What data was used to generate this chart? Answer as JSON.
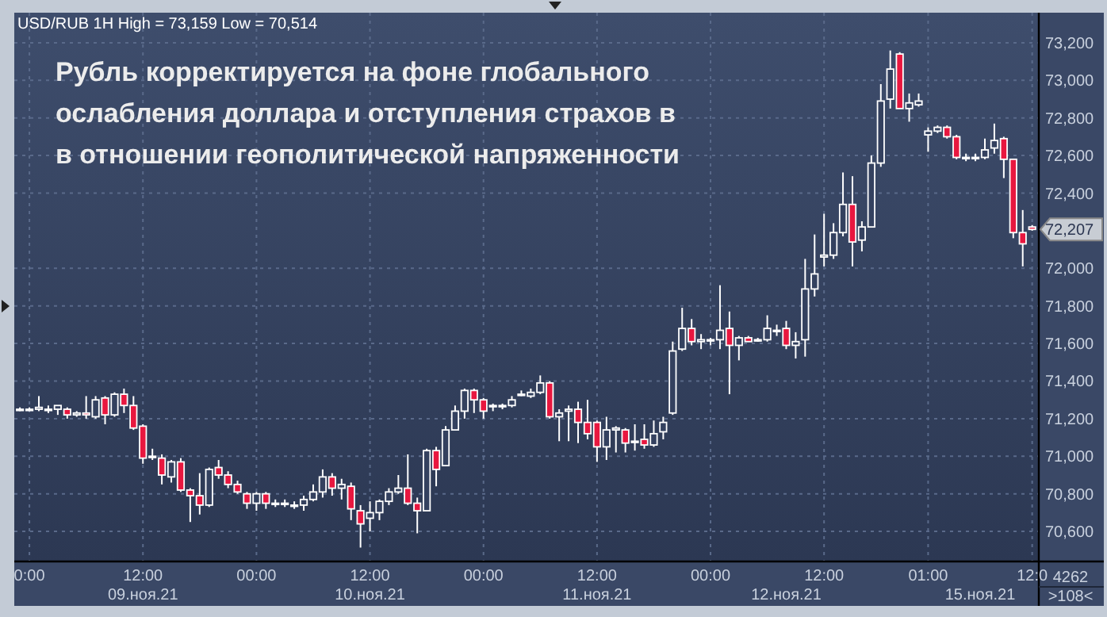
{
  "chart_data": {
    "type": "candlestick",
    "title": "Рубль корректируется на фоне глобального\nослабления доллара и отступления страхов в\nв отношении геополитической напряженности",
    "subtitle": "USD/RUB 1H High = 73,159 Low = 70,514",
    "categories": [
      null,
      "0:00",
      null,
      null,
      null,
      null,
      null,
      null,
      null,
      null,
      null,
      null,
      null,
      "12:00",
      null,
      null,
      null,
      null,
      null,
      null,
      null,
      null,
      null,
      null,
      null,
      "00:00",
      null,
      null,
      null,
      null,
      null,
      null,
      null,
      null,
      null,
      null,
      null,
      "12:00",
      null,
      null,
      null,
      null,
      null,
      null,
      null,
      null,
      null,
      null,
      null,
      "00:00",
      null,
      null,
      null,
      null,
      null,
      null,
      null,
      null,
      null,
      null,
      null,
      "12:00",
      null,
      null,
      null,
      null,
      null,
      null,
      null,
      null,
      null,
      null,
      null,
      "00:00",
      null,
      null,
      null,
      null,
      null,
      null,
      null,
      null,
      null,
      null,
      null,
      "12:00",
      null,
      null,
      null,
      null,
      null,
      null,
      null,
      null,
      null,
      null,
      "01:00",
      null,
      null,
      null,
      null,
      null,
      null,
      null,
      null,
      null,
      null,
      "12:0"
    ],
    "ohlc": [
      [
        71250,
        71260,
        71240,
        71250
      ],
      [
        71250,
        71260,
        71240,
        71250
      ],
      [
        71250,
        71320,
        71240,
        71260
      ],
      [
        71250,
        71270,
        71230,
        71250
      ],
      [
        71250,
        71270,
        71220,
        71270
      ],
      [
        71250,
        71260,
        71200,
        71220
      ],
      [
        71220,
        71240,
        71210,
        71230
      ],
      [
        71230,
        71320,
        71200,
        71220
      ],
      [
        71210,
        71320,
        71200,
        71300
      ],
      [
        71310,
        71320,
        71170,
        71220
      ],
      [
        71220,
        71340,
        71210,
        71330
      ],
      [
        71330,
        71360,
        71230,
        71270
      ],
      [
        71270,
        71320,
        71140,
        71150
      ],
      [
        71160,
        71170,
        70960,
        70990
      ],
      [
        71000,
        71040,
        70980,
        71000
      ],
      [
        70990,
        71010,
        70850,
        70900
      ],
      [
        70890,
        70980,
        70860,
        70970
      ],
      [
        70970,
        70990,
        70810,
        70820
      ],
      [
        70820,
        70830,
        70650,
        70790
      ],
      [
        70790,
        70910,
        70690,
        70740
      ],
      [
        70740,
        70940,
        70730,
        70930
      ],
      [
        70940,
        70980,
        70880,
        70900
      ],
      [
        70900,
        70920,
        70830,
        70850
      ],
      [
        70850,
        70870,
        70800,
        70810
      ],
      [
        70800,
        70810,
        70720,
        70750
      ],
      [
        70750,
        70810,
        70710,
        70800
      ],
      [
        70800,
        70810,
        70720,
        70750
      ],
      [
        70750,
        70770,
        70730,
        70750
      ],
      [
        70750,
        70770,
        70730,
        70750
      ],
      [
        70740,
        70760,
        70720,
        70740
      ],
      [
        70740,
        70790,
        70710,
        70770
      ],
      [
        70770,
        70850,
        70760,
        70810
      ],
      [
        70810,
        70930,
        70780,
        70890
      ],
      [
        70890,
        70910,
        70790,
        70830
      ],
      [
        70830,
        70880,
        70770,
        70850
      ],
      [
        70840,
        70860,
        70660,
        70720
      ],
      [
        70710,
        70740,
        70514,
        70640
      ],
      [
        70670,
        70760,
        70600,
        70700
      ],
      [
        70700,
        70770,
        70660,
        70760
      ],
      [
        70760,
        70830,
        70740,
        70810
      ],
      [
        70810,
        70900,
        70800,
        70830
      ],
      [
        70830,
        71010,
        70740,
        70750
      ],
      [
        70750,
        70780,
        70590,
        70710
      ],
      [
        70710,
        71040,
        70710,
        71030
      ],
      [
        71030,
        71050,
        70840,
        70930
      ],
      [
        70950,
        71160,
        70950,
        71140
      ],
      [
        71140,
        71270,
        71140,
        71240
      ],
      [
        71240,
        71360,
        71200,
        71350
      ],
      [
        71350,
        71360,
        71230,
        71300
      ],
      [
        71300,
        71310,
        71200,
        71240
      ],
      [
        71270,
        71280,
        71240,
        71270
      ],
      [
        71270,
        71280,
        71250,
        71270
      ],
      [
        71270,
        71320,
        71260,
        71300
      ],
      [
        71330,
        71350,
        71320,
        71330
      ],
      [
        71320,
        71360,
        71310,
        71340
      ],
      [
        71340,
        71430,
        71330,
        71390
      ],
      [
        71390,
        71400,
        71200,
        71210
      ],
      [
        71210,
        71250,
        71080,
        71230
      ],
      [
        71240,
        71270,
        71080,
        71250
      ],
      [
        71250,
        71290,
        71070,
        71180
      ],
      [
        71180,
        71300,
        71090,
        71120
      ],
      [
        71180,
        71190,
        70970,
        71050
      ],
      [
        71050,
        71210,
        70980,
        71140
      ],
      [
        71140,
        71160,
        71020,
        71150
      ],
      [
        71140,
        71150,
        71020,
        71070
      ],
      [
        71080,
        71170,
        71030,
        71080
      ],
      [
        71090,
        71170,
        71040,
        71060
      ],
      [
        71060,
        71190,
        71050,
        71120
      ],
      [
        71130,
        71210,
        71090,
        71180
      ],
      [
        71230,
        71610,
        71220,
        71560
      ],
      [
        71570,
        71790,
        71560,
        71680
      ],
      [
        71680,
        71730,
        71590,
        71610
      ],
      [
        71610,
        71650,
        71570,
        71620
      ],
      [
        71620,
        71630,
        71590,
        71620
      ],
      [
        71620,
        71910,
        71570,
        71670
      ],
      [
        71680,
        71770,
        71330,
        71590
      ],
      [
        71590,
        71640,
        71510,
        71630
      ],
      [
        71630,
        71640,
        71610,
        71610
      ],
      [
        71620,
        71630,
        71610,
        71620
      ],
      [
        71620,
        71750,
        71610,
        71680
      ],
      [
        71670,
        71700,
        71640,
        71670
      ],
      [
        71680,
        71720,
        71570,
        71590
      ],
      [
        71590,
        71660,
        71520,
        71610
      ],
      [
        71620,
        72050,
        71530,
        71890
      ],
      [
        71890,
        72180,
        71850,
        71970
      ],
      [
        72060,
        72290,
        72010,
        72070
      ],
      [
        72070,
        72240,
        72050,
        72190
      ],
      [
        72190,
        72510,
        72170,
        72340
      ],
      [
        72340,
        72490,
        72010,
        72140
      ],
      [
        72150,
        72250,
        72090,
        72220
      ],
      [
        72220,
        72600,
        72220,
        72560
      ],
      [
        72560,
        72980,
        72540,
        72890
      ],
      [
        72900,
        73159,
        72850,
        73060
      ],
      [
        73140,
        73150,
        72850,
        72850
      ],
      [
        72850,
        72930,
        72780,
        72880
      ],
      [
        72870,
        72930,
        72860,
        72890
      ],
      [
        72710,
        72750,
        72620,
        72730
      ],
      [
        72730,
        72760,
        72720,
        72750
      ],
      [
        72750,
        72760,
        72690,
        72700
      ],
      [
        72700,
        72710,
        72580,
        72590
      ],
      [
        72590,
        72610,
        72570,
        72590
      ],
      [
        72590,
        72610,
        72570,
        72590
      ],
      [
        72590,
        72690,
        72580,
        72630
      ],
      [
        72640,
        72770,
        72610,
        72680
      ],
      [
        72690,
        72700,
        72480,
        72580
      ],
      [
        72580,
        72580,
        72160,
        72190
      ],
      [
        72190,
        72310,
        72010,
        72130
      ],
      [
        72220,
        72230,
        72200,
        72207
      ]
    ],
    "ylim": [
      70440,
      73360
    ],
    "yticks": [
      {
        "value": 70600,
        "label": "70,600"
      },
      {
        "value": 70800,
        "label": "70,800"
      },
      {
        "value": 71000,
        "label": "71,000"
      },
      {
        "value": 71200,
        "label": "71,200"
      },
      {
        "value": 71400,
        "label": "71,400"
      },
      {
        "value": 71600,
        "label": "71,600"
      },
      {
        "value": 71800,
        "label": "71,800"
      },
      {
        "value": 72000,
        "label": "72,000"
      },
      {
        "value": 72207,
        "label": "72,207"
      },
      {
        "value": 72400,
        "label": "72,400"
      },
      {
        "value": 72600,
        "label": "72,600"
      },
      {
        "value": 72800,
        "label": "72,800"
      },
      {
        "value": 73000,
        "label": "73,000"
      },
      {
        "value": 73200,
        "label": "73,200"
      }
    ],
    "grid": true,
    "annotations": [
      "09.ноя.21",
      "10.ноя.21",
      "11.ноя.21",
      "12.ноя.21",
      "15.ноя.21",
      "4262",
      ">108<"
    ]
  }
}
